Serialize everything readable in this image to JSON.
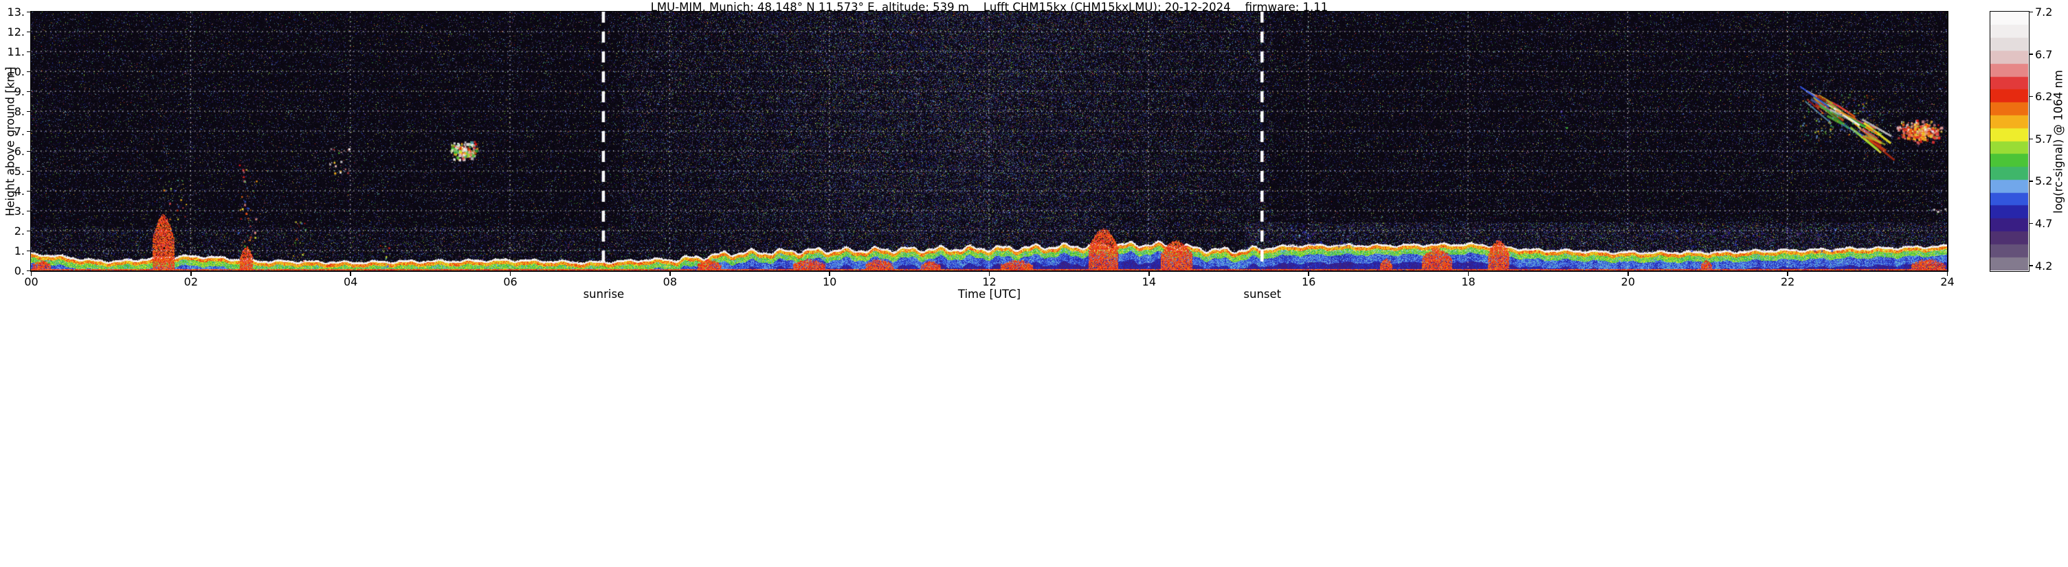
{
  "chart_data": {
    "type": "heatmap",
    "title": "LMU-MIM, Munich; 48.148° N 11.573° E, altitude: 539 m    Lufft CHM15kx (CHM15kxLMU): 20-12-2024    firmware: 1.11",
    "xlabel": "Time [UTC]",
    "ylabel": "Height above ground [km]",
    "xlim": [
      0,
      24
    ],
    "ylim": [
      0,
      13
    ],
    "x_tick_values": [
      0,
      2,
      4,
      6,
      8,
      10,
      12,
      14,
      16,
      18,
      20,
      22,
      24
    ],
    "x_tick_labels": [
      "00",
      "02",
      "04",
      "06",
      "08",
      "10",
      "12",
      "14",
      "16",
      "18",
      "20",
      "22",
      "24"
    ],
    "y_tick_values": [
      0,
      1,
      2,
      3,
      4,
      5,
      6,
      7,
      8,
      9,
      10,
      11,
      12,
      13
    ],
    "y_tick_labels": [
      "0.",
      "1.",
      "2.",
      "3.",
      "4.",
      "5.",
      "6.",
      "7.",
      "8.",
      "9.",
      "10.",
      "11.",
      "12.",
      "13."
    ],
    "grid": {
      "show": true,
      "style": "dotted",
      "color": "#ffffff"
    },
    "plot_background": "#0b0712",
    "annotations": [
      {
        "label": "sunrise",
        "x": 7.17,
        "type": "vline",
        "color": "#ffffff",
        "dash": [
          16,
          13
        ],
        "width": 4.5
      },
      {
        "label": "sunset",
        "x": 15.42,
        "type": "vline",
        "color": "#ffffff",
        "dash": [
          16,
          13
        ],
        "width": 4.5
      }
    ],
    "colorbar": {
      "label": "log(rc-signal) @ 1064 nm",
      "tick_values": [
        4.2,
        4.7,
        5.2,
        5.7,
        6.2,
        6.7,
        7.2
      ],
      "vmin": 4.14,
      "vmax": 7.2,
      "band_step": 0.153,
      "stops": [
        [
          4.14,
          "#97929c"
        ],
        [
          4.3,
          "#6e6080"
        ],
        [
          4.5,
          "#53366e"
        ],
        [
          4.62,
          "#41207a"
        ],
        [
          4.78,
          "#2a1d98"
        ],
        [
          4.92,
          "#2438cc"
        ],
        [
          5.02,
          "#3c6ae8"
        ],
        [
          5.12,
          "#74a2f0"
        ],
        [
          5.22,
          "#62c8c8"
        ],
        [
          5.32,
          "#2fae3e"
        ],
        [
          5.48,
          "#55cc35"
        ],
        [
          5.62,
          "#aae035"
        ],
        [
          5.75,
          "#f0ee2c"
        ],
        [
          5.88,
          "#f6b81e"
        ],
        [
          6.02,
          "#f08012"
        ],
        [
          6.16,
          "#ea3a10"
        ],
        [
          6.28,
          "#e01212"
        ],
        [
          6.45,
          "#e66a6a"
        ],
        [
          6.6,
          "#e8b2b2"
        ],
        [
          6.72,
          "#dcd2d2"
        ],
        [
          6.95,
          "#f0eded"
        ],
        [
          7.2,
          "#ffffff"
        ]
      ]
    },
    "series_summary": {
      "boundary_layer_top_km": {
        "x_hours": [
          0,
          1,
          2,
          3,
          4,
          5,
          6,
          7,
          8,
          9,
          10,
          11,
          12,
          13,
          14,
          15,
          16,
          17,
          18,
          19,
          20,
          21,
          22,
          23,
          24
        ],
        "values": [
          0.85,
          0.5,
          0.75,
          0.5,
          0.45,
          0.5,
          0.55,
          0.45,
          0.6,
          0.95,
          1.05,
          1.1,
          1.15,
          1.25,
          1.35,
          1.05,
          1.3,
          1.3,
          1.35,
          1.05,
          0.95,
          0.95,
          1.05,
          1.15,
          1.25
        ]
      },
      "surface_hotspots": [
        [
          0.02,
          0.25,
          0.5
        ],
        [
          1.52,
          1.8,
          2.8
        ],
        [
          2.62,
          2.78,
          1.2
        ],
        [
          8.35,
          8.65,
          0.5
        ],
        [
          9.55,
          9.95,
          0.55
        ],
        [
          10.45,
          10.8,
          0.55
        ],
        [
          11.15,
          11.4,
          0.45
        ],
        [
          12.15,
          12.55,
          0.5
        ],
        [
          13.25,
          13.62,
          2.1
        ],
        [
          14.15,
          14.55,
          1.5
        ],
        [
          16.9,
          17.05,
          0.6
        ],
        [
          17.42,
          17.8,
          1.1
        ],
        [
          18.25,
          18.52,
          1.5
        ],
        [
          20.92,
          21.06,
          0.5
        ],
        [
          23.55,
          23.98,
          0.55
        ]
      ],
      "plumes": [
        {
          "kind": "specks",
          "t": [
            1.55,
            1.95
          ],
          "km": [
            2.6,
            4.7
          ],
          "density": 0.1,
          "v": [
            4.9,
            6.4
          ]
        },
        {
          "kind": "specks",
          "t": [
            2.58,
            2.82
          ],
          "km": [
            0.8,
            5.4
          ],
          "density": 0.16,
          "v": [
            4.9,
            6.6
          ]
        },
        {
          "kind": "specks",
          "t": [
            3.28,
            3.45
          ],
          "km": [
            0.3,
            2.6
          ],
          "density": 0.2,
          "v": [
            5.0,
            6.5
          ]
        },
        {
          "kind": "specks",
          "t": [
            3.72,
            3.98
          ],
          "km": [
            4.9,
            6.2
          ],
          "density": 0.22,
          "v": [
            5.3,
            7.0
          ]
        },
        {
          "kind": "cloud",
          "t": [
            5.22,
            5.62
          ],
          "km": [
            5.5,
            6.6
          ],
          "density": 0.6,
          "v": [
            5.2,
            7.0
          ]
        },
        {
          "kind": "specks",
          "t": [
            4.35,
            4.52
          ],
          "km": [
            0.2,
            1.5
          ],
          "density": 0.25,
          "v": [
            5.0,
            6.3
          ]
        },
        {
          "kind": "specks",
          "t": [
            15.75,
            16.6
          ],
          "km": [
            1.2,
            2.3
          ],
          "density": 0.22,
          "v": [
            4.4,
            5.2
          ]
        },
        {
          "kind": "specks",
          "t": [
            20.3,
            22.6
          ],
          "km": [
            1.0,
            2.1
          ],
          "density": 0.12,
          "v": [
            4.35,
            5.0
          ]
        },
        {
          "kind": "streaks",
          "t": [
            22.15,
            23.2
          ],
          "km": [
            6.5,
            8.9
          ],
          "density": 0.5,
          "v": [
            5.5,
            6.6
          ]
        },
        {
          "kind": "cloud",
          "t": [
            23.32,
            23.97
          ],
          "km": [
            6.35,
            7.7
          ],
          "density": 0.55,
          "v": [
            5.7,
            6.6
          ]
        },
        {
          "kind": "specks",
          "t": [
            19.12,
            19.3
          ],
          "km": [
            7.2,
            8.3
          ],
          "density": 0.07,
          "v": [
            4.7,
            5.5
          ]
        },
        {
          "kind": "specks",
          "t": [
            23.82,
            23.98
          ],
          "km": [
            2.85,
            3.15
          ],
          "density": 0.5,
          "v": [
            6.5,
            7.2
          ]
        }
      ],
      "noise": {
        "base_density": 0.085,
        "evening_density": 0.1,
        "day_density_peak": 0.33,
        "day_window_hours": [
          7.4,
          15.55
        ],
        "day_center_hour": 11.6,
        "low_haze_density_evening": 0.22,
        "low_haze_density_night": 0.1
      }
    }
  }
}
